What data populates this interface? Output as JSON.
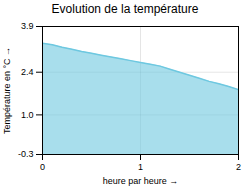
{
  "chart_data": {
    "type": "area",
    "title": "Evolution de la température",
    "xlabel": "heure par heure",
    "ylabel": "Température en °C",
    "x": [
      0,
      0.1,
      0.2,
      0.3,
      0.4,
      0.5,
      0.6,
      0.7,
      0.8,
      0.9,
      1.0,
      1.1,
      1.2,
      1.3,
      1.4,
      1.5,
      1.6,
      1.7,
      1.8,
      1.9,
      2.0
    ],
    "values": [
      3.35,
      3.3,
      3.22,
      3.15,
      3.08,
      3.02,
      2.96,
      2.9,
      2.84,
      2.78,
      2.72,
      2.66,
      2.6,
      2.5,
      2.4,
      2.3,
      2.2,
      2.1,
      2.02,
      1.93,
      1.83
    ],
    "color": "#6ec8e0",
    "xlim": [
      0,
      2
    ],
    "xticks": [
      0,
      1,
      2
    ],
    "ylim": [
      -0.3,
      3.9
    ],
    "yticks": [
      -0.3,
      {
        "value": 1.0,
        "label": "1.0"
      },
      2.4,
      3.9
    ],
    "grid": true
  }
}
